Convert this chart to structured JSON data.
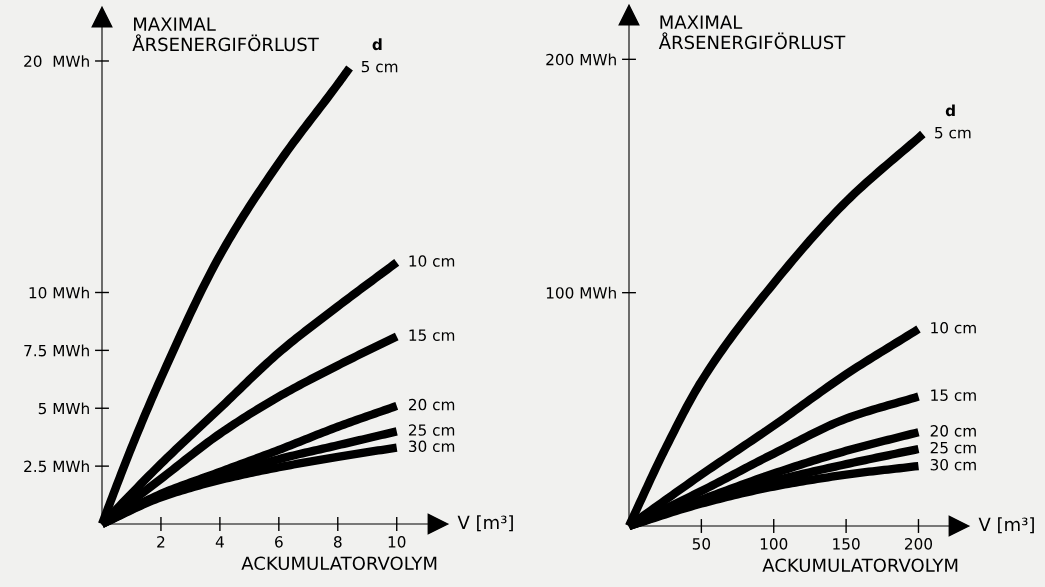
{
  "chart_data": [
    {
      "type": "line",
      "ylabel": "MAXIMAL\nÅRSENERGIFÖRLUST",
      "xlabel": "ACKUMULATORVOLYM",
      "annotations": [
        "V [m³]"
      ],
      "legend_title": "d",
      "xlim": [
        0,
        11.4
      ],
      "ylim": [
        0,
        21.9
      ],
      "xticks": [
        2,
        4,
        6,
        8,
        10
      ],
      "yticks": [
        {
          "value": 2.5,
          "label": "2.5 MWh"
        },
        {
          "value": 5,
          "label": "5 MWh"
        },
        {
          "value": 7.5,
          "label": "7.5 MWh"
        },
        {
          "value": 10,
          "label": "10 MWh"
        },
        {
          "value": 20,
          "label": "20  MWh"
        }
      ],
      "series": [
        {
          "name": "5 cm",
          "color": "#000000",
          "x": [
            0,
            1,
            2,
            4,
            6,
            8,
            8.4
          ],
          "values": [
            0,
            3.3,
            6.3,
            11.6,
            15.6,
            19.0,
            19.7
          ]
        },
        {
          "name": "10 cm",
          "color": "#000000",
          "x": [
            0,
            2,
            4,
            6,
            8,
            10
          ],
          "values": [
            0,
            2.6,
            5.0,
            7.4,
            9.4,
            11.3
          ]
        },
        {
          "name": "15 cm",
          "color": "#000000",
          "x": [
            0,
            2,
            4,
            6,
            8,
            10
          ],
          "values": [
            0,
            1.95,
            3.9,
            5.5,
            6.85,
            8.1
          ]
        },
        {
          "name": "20 cm",
          "color": "#000000",
          "x": [
            0,
            2,
            4,
            6,
            8,
            10
          ],
          "values": [
            0,
            1.3,
            2.25,
            3.2,
            4.2,
            5.1
          ]
        },
        {
          "name": "25 cm",
          "color": "#000000",
          "x": [
            0,
            2,
            4,
            6,
            8,
            10
          ],
          "values": [
            0,
            1.2,
            2.0,
            2.8,
            3.4,
            4.0
          ]
        },
        {
          "name": "30 cm",
          "color": "#000000",
          "x": [
            0,
            2,
            4,
            6,
            8,
            10
          ],
          "values": [
            0,
            1.15,
            1.9,
            2.45,
            2.9,
            3.3
          ]
        }
      ]
    },
    {
      "type": "line",
      "ylabel": "MAXIMAL\nÅRSENERGIFÖRLUST",
      "xlabel": "ACKUMULATORVOLYM",
      "annotations": [
        "V [m³]"
      ],
      "legend_title": "d",
      "xlim": [
        0,
        228
      ],
      "ylim": [
        0,
        219
      ],
      "xticks": [
        50,
        100,
        150,
        200
      ],
      "yticks": [
        {
          "value": 100,
          "label": "100 MWh"
        },
        {
          "value": 200,
          "label": "200 MWh"
        }
      ],
      "series": [
        {
          "name": "5 cm",
          "color": "#000000",
          "x": [
            0,
            25,
            50,
            100,
            150,
            203
          ],
          "values": [
            0,
            33,
            62,
            104,
            139,
            168
          ]
        },
        {
          "name": "10 cm",
          "color": "#000000",
          "x": [
            0,
            50,
            100,
            150,
            200
          ],
          "values": [
            0,
            22,
            43,
            65,
            84.4
          ]
        },
        {
          "name": "15 cm",
          "color": "#000000",
          "x": [
            0,
            50,
            100,
            150,
            200
          ],
          "values": [
            0,
            15,
            31,
            46,
            55.5
          ]
        },
        {
          "name": "20 cm",
          "color": "#000000",
          "x": [
            0,
            50,
            100,
            150,
            200
          ],
          "values": [
            0,
            11.3,
            22.5,
            32.2,
            40.2
          ]
        },
        {
          "name": "25 cm",
          "color": "#000000",
          "x": [
            0,
            50,
            100,
            150,
            200
          ],
          "values": [
            0,
            10.5,
            19.3,
            26.5,
            33
          ]
        },
        {
          "name": "30 cm",
          "color": "#000000",
          "x": [
            0,
            50,
            100,
            150,
            200
          ],
          "values": [
            0,
            9.6,
            16.9,
            22,
            25.7
          ]
        }
      ]
    }
  ]
}
